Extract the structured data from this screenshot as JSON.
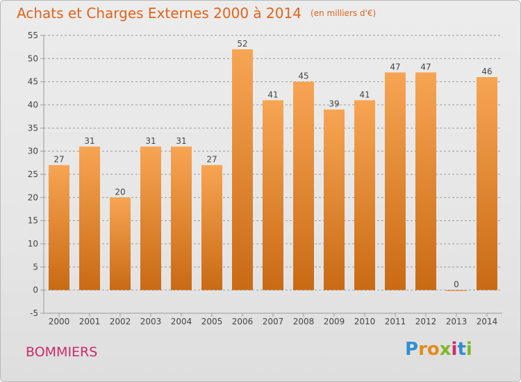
{
  "header": {
    "title": "Achats et Charges Externes 2000 à 2014",
    "subtitle": "(en milliers d'€)"
  },
  "footer": {
    "city": "BOMMIERS",
    "logo_letters": [
      "P",
      "r",
      "o",
      "x",
      "i",
      "t",
      "i"
    ],
    "logo_colors": [
      "#2f8fd0",
      "#e38a1c",
      "#e38a1c",
      "#7fb927",
      "#d42a6f",
      "#2f8fd0",
      "#7fb927"
    ]
  },
  "chart_data": {
    "type": "bar",
    "title": "Achats et Charges Externes 2000 à 2014",
    "subtitle": "(en milliers d'€)",
    "categories": [
      "2000",
      "2001",
      "2002",
      "2003",
      "2004",
      "2005",
      "2006",
      "2007",
      "2008",
      "2009",
      "2010",
      "2011",
      "2012",
      "2013",
      "2014"
    ],
    "values": [
      27,
      31,
      20,
      31,
      31,
      27,
      52,
      41,
      45,
      39,
      41,
      47,
      47,
      0,
      46
    ],
    "ylim": [
      -5,
      55
    ],
    "yticks": [
      -5,
      0,
      5,
      10,
      15,
      20,
      25,
      30,
      35,
      40,
      45,
      50,
      55
    ],
    "grid": "horizontal dashed",
    "bar_color_light": "#f7a553",
    "bar_color_dark": "#c96a14",
    "text_color": "#444444",
    "grid_color": "#9a9a9a"
  }
}
